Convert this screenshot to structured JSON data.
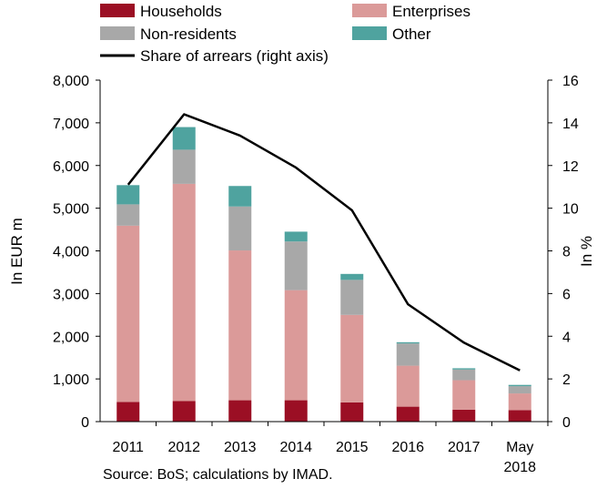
{
  "chart_data": {
    "type": "bar",
    "stacked": true,
    "categories": [
      "2011",
      "2012",
      "2013",
      "2014",
      "2015",
      "2016",
      "2017",
      "May 2018"
    ],
    "series": [
      {
        "name": "Households",
        "color": "#9b0f24",
        "values": [
          460,
          480,
          500,
          500,
          450,
          350,
          280,
          270
        ]
      },
      {
        "name": "Enterprises",
        "color": "#db9a99",
        "values": [
          4130,
          5090,
          3510,
          2580,
          2050,
          960,
          690,
          390
        ]
      },
      {
        "name": "Non-residents",
        "color": "#a8a8a8",
        "values": [
          500,
          800,
          1030,
          1140,
          820,
          520,
          250,
          170
        ]
      },
      {
        "name": "Other",
        "color": "#4fa39f",
        "values": [
          450,
          530,
          480,
          230,
          140,
          30,
          30,
          30
        ]
      }
    ],
    "line": {
      "name": "Share of arrears (right axis)",
      "color": "#000000",
      "axis": "right",
      "values": [
        11.1,
        14.4,
        13.4,
        11.9,
        9.9,
        5.5,
        3.7,
        2.4
      ]
    },
    "ylabel": "In EUR m",
    "ylabel_right": "In %",
    "ylim": [
      0,
      8000
    ],
    "ylim_right": [
      0,
      16
    ],
    "yticks": [
      "0",
      "1,000",
      "2,000",
      "3,000",
      "4,000",
      "5,000",
      "6,000",
      "7,000",
      "8,000"
    ],
    "yticks_right": [
      "0",
      "2",
      "4",
      "6",
      "8",
      "10",
      "12",
      "14",
      "16"
    ],
    "xticks": [
      [
        "2011"
      ],
      [
        "2012"
      ],
      [
        "2013"
      ],
      [
        "2014"
      ],
      [
        "2015"
      ],
      [
        "2016"
      ],
      [
        "2017"
      ],
      [
        "May",
        "2018"
      ]
    ],
    "grid": false,
    "legend_position": "top"
  },
  "source": "Source: BoS; calculations by IMAD."
}
